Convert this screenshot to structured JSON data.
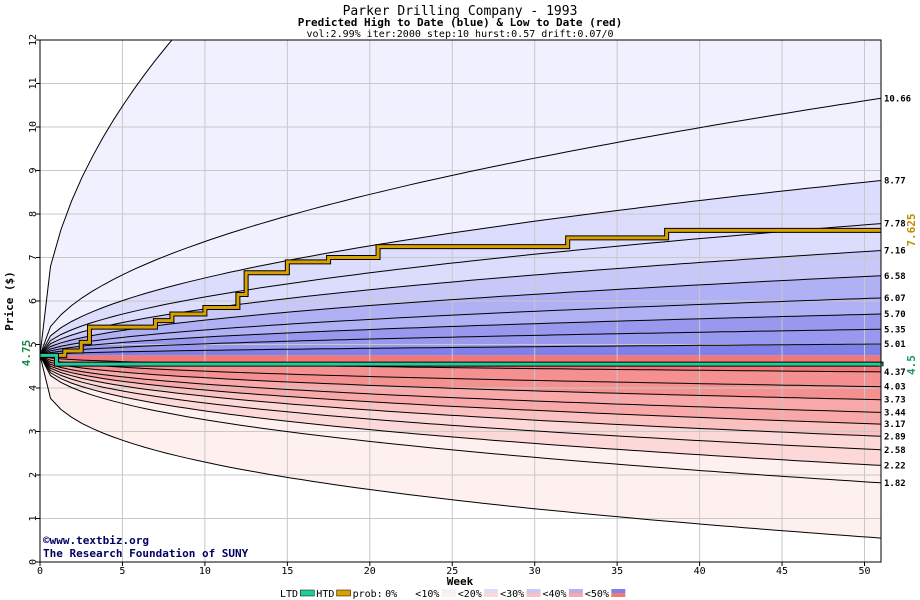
{
  "chart_data": {
    "type": "area",
    "title": "Parker Drilling Company - 1993",
    "subtitle": "Predicted High to Date (blue) &  Low to Date (red)",
    "params": "vol:2.99% iter:2000 step:10 hurst:0.57 drift:0.07/0",
    "xlabel": "Week",
    "ylabel": "Price ($)",
    "xlim": [
      0,
      51
    ],
    "ylim": [
      0,
      12
    ],
    "x_ticks": [
      0,
      5,
      10,
      15,
      20,
      25,
      30,
      35,
      40,
      45,
      50
    ],
    "y_ticks": [
      0,
      1,
      2,
      3,
      4,
      5,
      6,
      7,
      8,
      9,
      10,
      11,
      12
    ],
    "grid": true,
    "start_price": 4.75,
    "start_price_label": "4.75",
    "high_curves": [
      {
        "end": 10.66,
        "label": "10.66"
      },
      {
        "end": 8.77,
        "label": "8.77"
      },
      {
        "end": 7.78,
        "label": "7.78"
      },
      {
        "end": 7.16,
        "label": "7.16"
      },
      {
        "end": 6.58,
        "label": "6.58"
      },
      {
        "end": 6.07,
        "label": "6.07"
      },
      {
        "end": 5.7,
        "label": "5.70"
      },
      {
        "end": 5.35,
        "label": "5.35"
      },
      {
        "end": 5.01,
        "label": "5.01"
      }
    ],
    "low_curves": [
      {
        "end": 4.37,
        "label": "4.37"
      },
      {
        "end": 4.03,
        "label": "4.03"
      },
      {
        "end": 3.73,
        "label": "3.73"
      },
      {
        "end": 3.44,
        "label": "3.44"
      },
      {
        "end": 3.17,
        "label": "3.17"
      },
      {
        "end": 2.89,
        "label": "2.89"
      },
      {
        "end": 2.58,
        "label": "2.58"
      },
      {
        "end": 2.22,
        "label": "2.22"
      },
      {
        "end": 1.82,
        "label": "1.82"
      }
    ],
    "outer_high_at_week_8": 12,
    "outer_low_end": 0.55,
    "htd_series": {
      "name": "HTD",
      "points": [
        [
          0,
          4.75
        ],
        [
          1.5,
          4.85
        ],
        [
          2.5,
          5.05
        ],
        [
          3,
          5.4
        ],
        [
          7,
          5.55
        ],
        [
          8,
          5.7
        ],
        [
          10,
          5.85
        ],
        [
          12,
          6.15
        ],
        [
          12.5,
          6.65
        ],
        [
          15,
          6.9
        ],
        [
          17.5,
          7.0
        ],
        [
          20.5,
          7.25
        ],
        [
          32,
          7.45
        ],
        [
          38,
          7.625
        ],
        [
          51,
          7.625
        ]
      ],
      "end_label": "7.625",
      "color": "#d8a000"
    },
    "ltd_series": {
      "name": "LTD",
      "points": [
        [
          0,
          4.75
        ],
        [
          1,
          4.55
        ],
        [
          2,
          4.55
        ],
        [
          51,
          4.5
        ]
      ],
      "end_label": "4.5",
      "color": "#22cc99"
    },
    "colors": {
      "blue_bands": [
        "#f0f0ff",
        "#dcdcfc",
        "#c8c8f8",
        "#b0b0f4",
        "#9898ee",
        "#8080ea"
      ],
      "red_bands": [
        "#fff0f0",
        "#fdd8d8",
        "#fbc0c0",
        "#f8a8a8",
        "#f49090",
        "#f07878"
      ],
      "htd": "#d8a000",
      "ltd": "#22cc99",
      "grid": "#c8c8c8"
    },
    "legend": {
      "items": [
        "LTD",
        "HTD",
        "prob:",
        "0%",
        "<10%",
        "<20%",
        "<30%",
        "<40%",
        "<50%"
      ],
      "placement": "bottom"
    },
    "credits": [
      "©www.textbiz.org",
      "The Research Foundation of SUNY"
    ]
  }
}
